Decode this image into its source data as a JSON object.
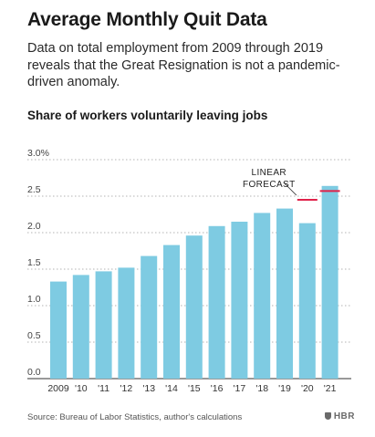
{
  "header": {
    "title": "Average Monthly Quit Data",
    "subtitle": "Data on total employment from 2009 through 2019 reveals that the Great Resignation is not a pandemic-driven anomaly.",
    "chart_heading": "Share of workers voluntarily leaving jobs"
  },
  "footer": {
    "source": "Source: Bureau of Labor Statistics, author's calculations",
    "brand": "HBR"
  },
  "colors": {
    "bar": "#7ecbe2",
    "forecast": "#e0224a",
    "grid": "#9a9a9a",
    "text": "#1a1a1a"
  },
  "chart_data": {
    "type": "bar",
    "title": "Share of workers voluntarily leaving jobs",
    "categories": [
      "2009",
      "'10",
      "'11",
      "'12",
      "'13",
      "'14",
      "'15",
      "'16",
      "'17",
      "'18",
      "'19",
      "'20",
      "'21"
    ],
    "values": [
      1.33,
      1.42,
      1.47,
      1.52,
      1.68,
      1.83,
      1.96,
      2.09,
      2.15,
      2.27,
      2.33,
      2.13,
      2.64
    ],
    "forecast": {
      "label_lines": [
        "LINEAR",
        "FORECAST"
      ],
      "points": [
        {
          "category": "'20",
          "value": 2.45
        },
        {
          "category": "'21",
          "value": 2.57
        }
      ]
    },
    "y_ticks": [
      "3.0%",
      "2.5",
      "2.0",
      "1.5",
      "1.0",
      "0.5",
      "0.0"
    ],
    "ylim": [
      0,
      3.0
    ],
    "grid": true,
    "grid_style": "dotted"
  }
}
